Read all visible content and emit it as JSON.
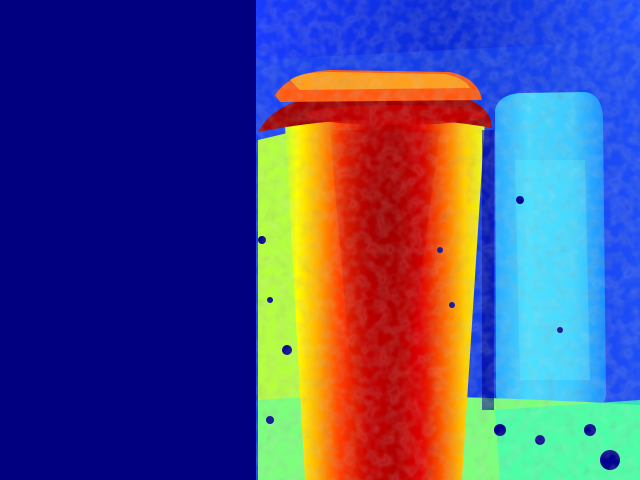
{
  "image": {
    "kind": "depth-map",
    "colormap": "jet",
    "colors": {
      "far": "#000080",
      "mid": "#00c8ff",
      "near": "#ffff00",
      "nearest": "#a00000"
    }
  }
}
